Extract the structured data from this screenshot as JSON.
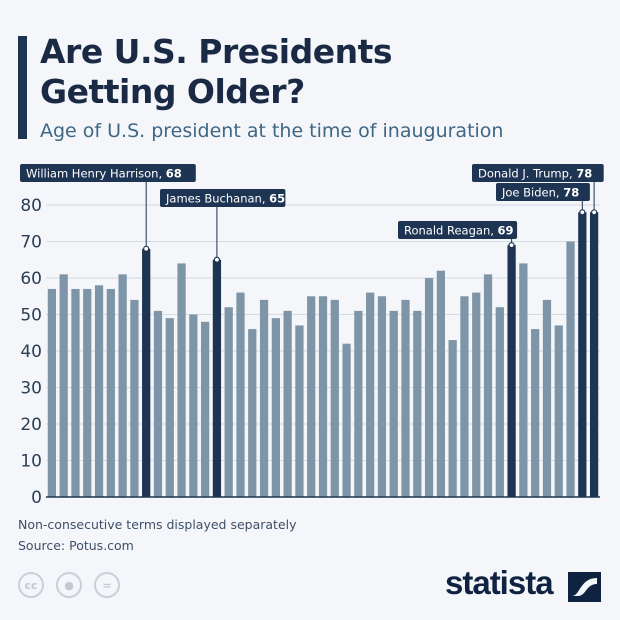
{
  "header": {
    "title_line1": "Are U.S. Presidents",
    "title_line2": "Getting Older?",
    "subtitle": "Age of U.S. president at the time of inauguration"
  },
  "chart_data": {
    "type": "bar",
    "title": "Are U.S. Presidents Getting Older?",
    "subtitle": "Age of U.S. president at the time of inauguration",
    "ylim": [
      0,
      80
    ],
    "yticks": [
      "0",
      "10",
      "20",
      "30",
      "40",
      "50",
      "60",
      "70",
      "80"
    ],
    "grid": true,
    "values": [
      57,
      61,
      57,
      57,
      58,
      57,
      61,
      54,
      68,
      51,
      49,
      64,
      50,
      48,
      65,
      52,
      56,
      46,
      54,
      49,
      51,
      47,
      55,
      55,
      54,
      42,
      51,
      56,
      55,
      51,
      54,
      51,
      60,
      62,
      43,
      55,
      56,
      61,
      52,
      69,
      64,
      46,
      54,
      47,
      70,
      78,
      78
    ],
    "highlight_color": "#1e3453",
    "bar_color": "#7d95a6",
    "annotations": [
      {
        "index": 8,
        "name": "William Henry Harrison",
        "value": "68"
      },
      {
        "index": 14,
        "name": "James Buchanan",
        "value": "65"
      },
      {
        "index": 39,
        "name": "Ronald Reagan",
        "value": "69"
      },
      {
        "index": 45,
        "name": "Joe Biden",
        "value": "78"
      },
      {
        "index": 46,
        "name": "Donald J. Trump",
        "value": "78"
      }
    ]
  },
  "footer": {
    "note": "Non-consecutive terms displayed separately",
    "source": "Source: Potus.com",
    "license_icons": [
      "cc",
      "by",
      "nd"
    ],
    "logo": "statista"
  }
}
